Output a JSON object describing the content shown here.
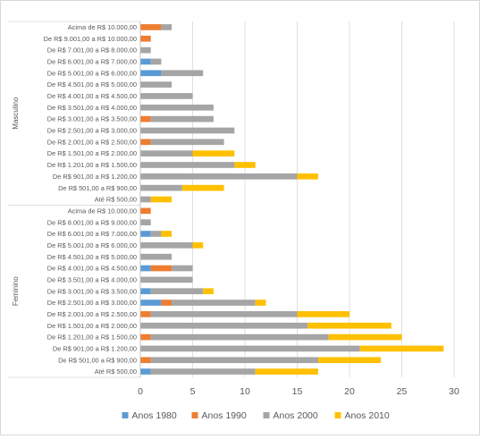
{
  "chart_data": {
    "type": "bar",
    "orientation": "horizontal",
    "stacked": true,
    "title": "",
    "xlabel": "",
    "ylabel": "",
    "xlim": [
      0,
      30
    ],
    "x_ticks": [
      0,
      5,
      10,
      15,
      20,
      25,
      30
    ],
    "grid": true,
    "legend_position": "bottom",
    "colors": [
      "#5b9bd5",
      "#ed7d31",
      "#a5a5a5",
      "#ffc000"
    ],
    "groups": [
      {
        "name": "Masculino",
        "categories": [
          "Acima de R$ 10.000,00",
          "De R$ 9.001,00 a R$ 10.000,00",
          "De R$ 7.001,00 a R$ 8.000,00",
          "De R$ 6.001,00 a R$ 7.000,00",
          "De R$ 5.001,00 a R$ 6.000,00",
          "De R$ 4.501,00 a R$ 5.000,00",
          "De R$ 4.001,00 a R$ 4.500,00",
          "De R$ 3.501,00 a R$ 4.000,00",
          "De R$ 3.001,00 a R$ 3.500,00",
          "De R$ 2.501,00 a R$ 3.000,00",
          "De R$ 2.001,00 a R$ 2.500,00",
          "De R$ 1.501,00 a R$ 2.000,00",
          "De R$ 1.201,00 a R$ 1.500,00",
          "De R$ 901,00 a R$ 1.200,00",
          "De R$ 501,00 a R$ 900,00",
          "Até R$ 500,00"
        ],
        "series": [
          {
            "name": "Anos 1980",
            "values": [
              0,
              0,
              0,
              1,
              2,
              0,
              0,
              0,
              0,
              0,
              0,
              0,
              0,
              0,
              0,
              0
            ]
          },
          {
            "name": "Anos 1990",
            "values": [
              2,
              1,
              0,
              0,
              0,
              0,
              0,
              0,
              1,
              0,
              1,
              0,
              0,
              0,
              0,
              0
            ]
          },
          {
            "name": "Anos 2000",
            "values": [
              1,
              0,
              1,
              1,
              4,
              3,
              5,
              7,
              6,
              9,
              7,
              5,
              9,
              15,
              4,
              1
            ]
          },
          {
            "name": "Anos 2010",
            "values": [
              0,
              0,
              0,
              0,
              0,
              0,
              0,
              0,
              0,
              0,
              0,
              4,
              2,
              2,
              4,
              2
            ]
          }
        ]
      },
      {
        "name": "Feminino",
        "categories": [
          "Acima de R$ 10.000,00",
          "De R$ 8.001,00 a R$ 9.000,00",
          "De R$ 6.001,00 a R$ 7.000,00",
          "De R$ 5.001,00 a R$ 6.000,00",
          "De R$ 4.501,00 a R$ 5.000,00",
          "De R$ 4.001,00 a R$ 4.500,00",
          "De R$ 3.501,00 a R$ 4.000,00",
          "De R$ 3.001,00 a R$ 3.500,00",
          "De R$ 2.501,00 a R$ 3.000,00",
          "De R$ 2.001,00 a R$ 2.500,00",
          "De R$ 1.501,00 a R$ 2.000,00",
          "De R$ 1.201,00 a R$ 1.500,00",
          "De R$ 901,00 a R$ 1.200,00",
          "De R$ 501,00 a R$ 900,00",
          "Até R$ 500,00"
        ],
        "series": [
          {
            "name": "Anos 1980",
            "values": [
              0,
              0,
              1,
              0,
              0,
              1,
              0,
              1,
              2,
              0,
              0,
              0,
              0,
              0,
              1
            ]
          },
          {
            "name": "Anos 1990",
            "values": [
              1,
              0,
              0,
              0,
              0,
              2,
              0,
              0,
              1,
              1,
              0,
              1,
              0,
              1,
              0
            ]
          },
          {
            "name": "Anos 2000",
            "values": [
              0,
              1,
              1,
              5,
              3,
              2,
              5,
              5,
              8,
              14,
              16,
              17,
              21,
              16,
              10
            ]
          },
          {
            "name": "Anos 2010",
            "values": [
              0,
              0,
              1,
              1,
              0,
              0,
              0,
              1,
              1,
              5,
              8,
              7,
              8,
              6,
              6
            ]
          }
        ]
      }
    ]
  }
}
